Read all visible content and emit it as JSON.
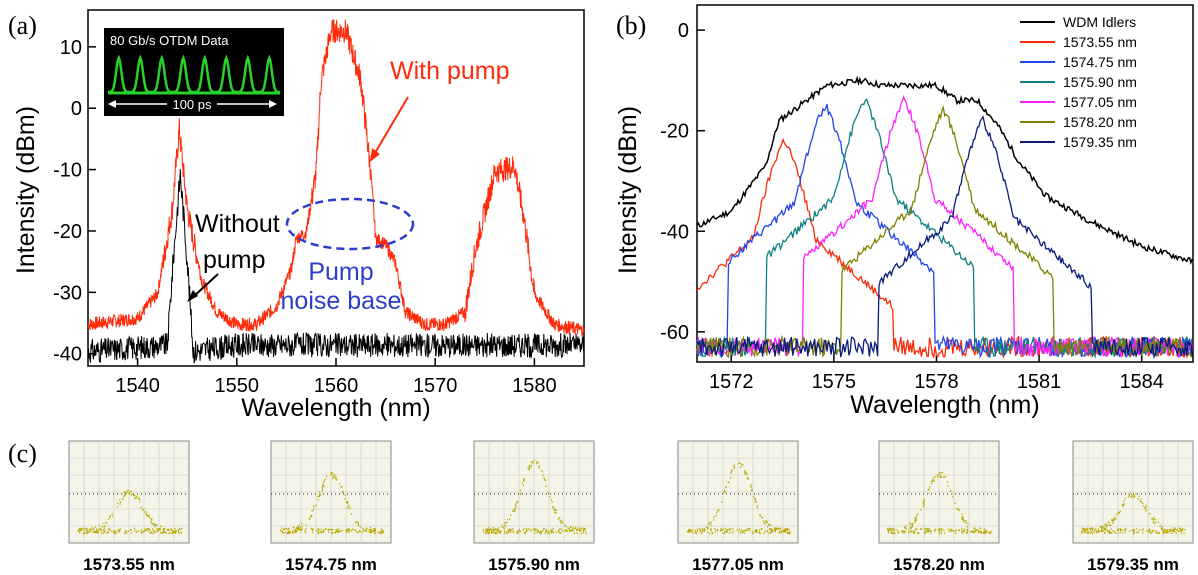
{
  "figure": {
    "panel_a_label": "(a)",
    "panel_b_label": "(b)",
    "panel_c_label": "(c)"
  },
  "chart_data": [
    {
      "type": "line",
      "panel": "(a)",
      "xlabel": "Wavelength (nm)",
      "ylabel": "Intensity (dBm)",
      "xlim": [
        1535,
        1585
      ],
      "ylim": [
        -42,
        16
      ],
      "xticks": [
        1540,
        1550,
        1560,
        1570,
        1580
      ],
      "yticks": [
        -40,
        -30,
        -20,
        -10,
        0,
        10
      ],
      "grid": false,
      "series": [
        {
          "name": "With pump",
          "color": "#ff2a0a",
          "x": [
            1535,
            1540,
            1542,
            1543.5,
            1544.2,
            1545,
            1546.5,
            1548,
            1550,
            1552,
            1554,
            1555.5,
            1556,
            1557,
            1558,
            1558.5,
            1559.5,
            1561,
            1562.5,
            1563.5,
            1564,
            1565,
            1566,
            1567,
            1569,
            1571,
            1573,
            1574,
            1576,
            1578,
            1579,
            1580,
            1582,
            1585
          ],
          "y": [
            -35,
            -34,
            -30,
            -16,
            -3,
            -16,
            -28,
            -33,
            -35,
            -35,
            -32,
            -26,
            -21,
            -20,
            -10,
            5,
            13,
            13,
            5,
            -10,
            -21,
            -22,
            -25,
            -33,
            -35,
            -35,
            -33,
            -23,
            -10,
            -9,
            -18,
            -30,
            -35,
            -36
          ]
        },
        {
          "name": "Without pump",
          "color": "#000000",
          "x": [
            1535,
            1543,
            1543.6,
            1544.3,
            1545,
            1545.6,
            1550,
            1560,
            1570,
            1585
          ],
          "y": [
            -40,
            -39,
            -25,
            -11,
            -25,
            -40,
            -39,
            -39,
            -39,
            -39
          ]
        }
      ],
      "annotations": [
        {
          "text": "With pump",
          "color": "#ff2a0a"
        },
        {
          "text": "Without",
          "color": "#000000"
        },
        {
          "text": "pump",
          "color": "#000000"
        },
        {
          "text": "Pump",
          "color": "#2b3fc9"
        },
        {
          "text": "noise base",
          "color": "#2b3fc9"
        }
      ],
      "inset": {
        "title": "80 Gb/s OTDM Data",
        "scale_label": "100 ps",
        "pulse_count": 8,
        "colors": {
          "background": "#000000",
          "trace": "#29d12b",
          "text": "#ffffff"
        }
      }
    },
    {
      "type": "line",
      "panel": "(b)",
      "xlabel": "Wavelength (nm)",
      "ylabel": "Intensity (dBm)",
      "xlim": [
        1571,
        1585.5
      ],
      "ylim": [
        -66,
        5
      ],
      "xticks": [
        1572,
        1575,
        1578,
        1581,
        1584
      ],
      "yticks": [
        -60,
        -40,
        -20,
        0
      ],
      "grid": false,
      "legend_position": "top-right",
      "series": [
        {
          "name": "WDM Idlers",
          "color": "#000000",
          "x": [
            1571,
            1572,
            1573,
            1573.4,
            1574,
            1574.8,
            1575.8,
            1576.4,
            1577.2,
            1578,
            1578.6,
            1579.2,
            1579.8,
            1580.4,
            1581.2,
            1582.5,
            1584,
            1585.5
          ],
          "y": [
            -39,
            -36,
            -27,
            -18,
            -15,
            -11,
            -10,
            -11,
            -11,
            -11,
            -14,
            -14,
            -19,
            -26,
            -33,
            -38,
            -43,
            -46
          ]
        },
        {
          "name": "1573.55 nm",
          "color": "#ff2a0a",
          "peak": 1573.55,
          "peak_y": -22
        },
        {
          "name": "1574.75 nm",
          "color": "#2244ee",
          "peak": 1574.75,
          "peak_y": -15
        },
        {
          "name": "1575.90 nm",
          "color": "#108080",
          "peak": 1575.9,
          "peak_y": -14
        },
        {
          "name": "1577.05 nm",
          "color": "#ff22ff",
          "peak": 1577.05,
          "peak_y": -14
        },
        {
          "name": "1578.20 nm",
          "color": "#808000",
          "peak": 1578.2,
          "peak_y": -16
        },
        {
          "name": "1579.35 nm",
          "color": "#0a1a7a",
          "peak": 1579.35,
          "peak_y": -18
        }
      ]
    }
  ],
  "eye_diagrams": {
    "labels": [
      "1573.55 nm",
      "1574.75 nm",
      "1575.90 nm",
      "1577.05 nm",
      "1578.20 nm",
      "1579.35 nm"
    ],
    "peak_fraction": [
      0.45,
      0.65,
      0.8,
      0.78,
      0.66,
      0.42
    ],
    "colors": {
      "background": "#f4f4e8",
      "grid": "#c8c8c8",
      "trace": "#b8a800",
      "dots": "#222222"
    }
  }
}
